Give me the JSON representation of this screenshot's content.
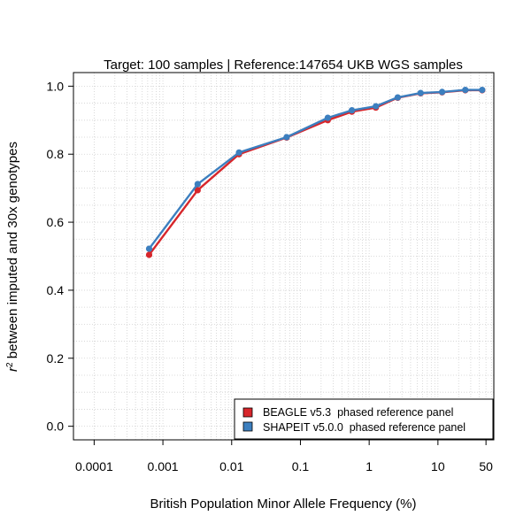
{
  "chart_data": {
    "type": "line",
    "title": "Target: 100 samples | Reference:147654 UKB WGS samples",
    "xlabel": "British Population Minor Allele Frequency (%)",
    "ylabel_prefix": "r",
    "ylabel_superscript": "2",
    "ylabel_rest": " between imputed and 30x genotypes",
    "x_scale": "log",
    "xlim": [
      5e-05,
      65
    ],
    "ylim": [
      -0.04,
      1.04
    ],
    "x_ticks": [
      0.0001,
      0.001,
      0.01,
      0.1,
      1,
      10,
      50
    ],
    "x_tick_labels": [
      "0.0001",
      "0.001",
      "0.01",
      "0.1",
      "1",
      "10",
      "50"
    ],
    "y_ticks": [
      0,
      0.2,
      0.4,
      0.6,
      0.8,
      1
    ],
    "y_tick_labels": [
      "0.0",
      "0.2",
      "0.4",
      "0.6",
      "0.8",
      "1.0"
    ],
    "grid": true,
    "legend_position": "bottom-right",
    "series": [
      {
        "name": "BEAGLE v5.3  phased reference panel",
        "color": "#d7262b",
        "x": [
          0.00063,
          0.0032,
          0.0128,
          0.063,
          0.25,
          0.56,
          1.25,
          2.6,
          5.6,
          11.5,
          25,
          44
        ],
        "y": [
          0.504,
          0.694,
          0.8,
          0.849,
          0.9,
          0.925,
          0.937,
          0.966,
          0.979,
          0.982,
          0.988,
          0.988
        ]
      },
      {
        "name": "SHAPEIT v5.0.0  phased reference panel",
        "color": "#3c7fbf",
        "x": [
          0.00063,
          0.0032,
          0.0128,
          0.063,
          0.25,
          0.56,
          1.25,
          2.6,
          5.6,
          11.5,
          25,
          44
        ],
        "y": [
          0.522,
          0.712,
          0.805,
          0.85,
          0.907,
          0.929,
          0.941,
          0.967,
          0.98,
          0.983,
          0.989,
          0.989
        ]
      }
    ]
  }
}
